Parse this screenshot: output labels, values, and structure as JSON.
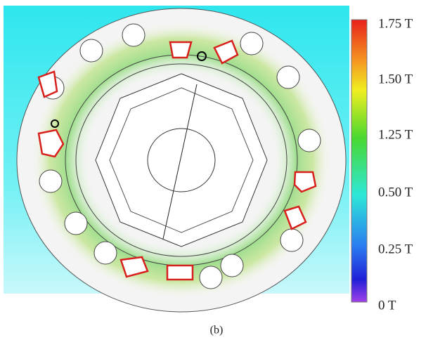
{
  "colorbar": {
    "labels": [
      "1.75 T",
      "1.50 T",
      "1.25 T",
      "0.50 T",
      "0.25 T",
      "0 T"
    ]
  },
  "caption": "(b)"
}
